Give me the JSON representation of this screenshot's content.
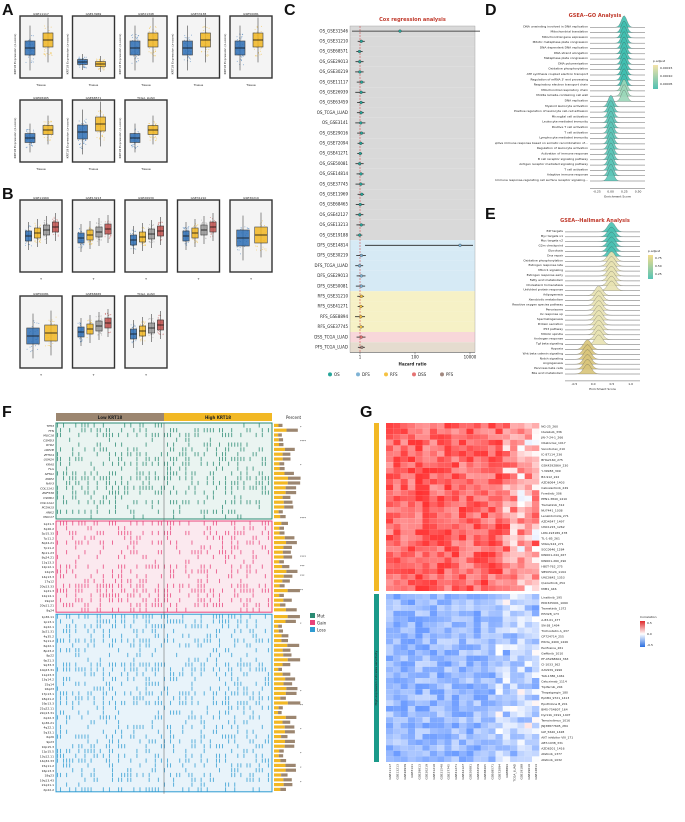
{
  "panels": {
    "A": "A",
    "B": "B",
    "C": "C",
    "D": "D",
    "E": "E",
    "F": "F",
    "G": "G"
  },
  "panelA": {
    "plots": [
      {
        "title": "GSE11117",
        "kind": "big"
      },
      {
        "title": "GSE13969",
        "kind": "flat"
      },
      {
        "title": "GSE21348",
        "kind": "big"
      },
      {
        "title": "GSE33138",
        "kind": "big"
      },
      {
        "title": "GSE50081",
        "kind": "big"
      },
      {
        "title": "GSE68465",
        "kind": "mid"
      },
      {
        "title": "GSE68571",
        "kind": "big"
      },
      {
        "title": "TCGA_LUAD",
        "kind": "mid"
      }
    ],
    "xlabel": "Tissue",
    "ylabel": "KRT18 Expression (z-score)",
    "colors": [
      "#2e6fb5",
      "#f2b824"
    ]
  },
  "panelB": {
    "plots": [
      {
        "title": "GSE11969",
        "n": 4
      },
      {
        "title": "GSE13213",
        "n": 4
      },
      {
        "title": "GSE26939",
        "n": 4
      },
      {
        "title": "GSE31210",
        "n": 4
      },
      {
        "title": "GSE30219",
        "n": 2
      },
      {
        "title": "GSE50081",
        "n": 2
      },
      {
        "title": "GSE68465",
        "n": 4
      },
      {
        "title": "TCGA_LUAD",
        "n": 4
      }
    ],
    "xlabel": "T",
    "colors": [
      "#2e6fb5",
      "#f2b824",
      "#999999",
      "#c0504d"
    ]
  },
  "panelC": {
    "title": "Cox regression analysis",
    "xlabel": "Hazard ratio",
    "xticks": [
      "1",
      "100",
      "10000"
    ],
    "rows": [
      {
        "label": "OS_GSE31546",
        "group": "OS"
      },
      {
        "label": "OS_GSE31210",
        "group": "OS"
      },
      {
        "label": "OS_GSE68571",
        "group": "OS"
      },
      {
        "label": "OS_GSE29013",
        "group": "OS"
      },
      {
        "label": "OS_GSE30219",
        "group": "OS"
      },
      {
        "label": "OS_GSE11117",
        "group": "OS"
      },
      {
        "label": "OS_GSE26939",
        "group": "OS"
      },
      {
        "label": "OS_GSE63459",
        "group": "OS"
      },
      {
        "label": "OS_TCGA_LUAD",
        "group": "OS"
      },
      {
        "label": "OS_GSE3141",
        "group": "OS"
      },
      {
        "label": "OS_GSE29016",
        "group": "OS"
      },
      {
        "label": "OS_GSE72094",
        "group": "OS"
      },
      {
        "label": "OS_GSE41271",
        "group": "OS"
      },
      {
        "label": "OS_GSE50081",
        "group": "OS"
      },
      {
        "label": "OS_GSE14814",
        "group": "OS"
      },
      {
        "label": "OS_GSE37745",
        "group": "OS"
      },
      {
        "label": "OS_GSE11969",
        "group": "OS"
      },
      {
        "label": "OS_GSE68465",
        "group": "OS"
      },
      {
        "label": "OS_GSE42127",
        "group": "OS"
      },
      {
        "label": "OS_GSE13213",
        "group": "OS"
      },
      {
        "label": "OS_GSE19188",
        "group": "OS"
      },
      {
        "label": "DFS_GSE14814",
        "group": "DFS"
      },
      {
        "label": "DFS_GSE30219",
        "group": "DFS"
      },
      {
        "label": "DFS_TCGA_LUAD",
        "group": "DFS"
      },
      {
        "label": "DFS_GSE29013",
        "group": "DFS"
      },
      {
        "label": "DFS_GSE50081",
        "group": "DFS"
      },
      {
        "label": "RFS_GSE31210",
        "group": "RFS"
      },
      {
        "label": "RFS_GSE41271",
        "group": "RFS"
      },
      {
        "label": "RFS_GSE8894",
        "group": "RFS"
      },
      {
        "label": "RFS_GSE37745",
        "group": "RFS"
      },
      {
        "label": "DSS_TCGA_LUAD",
        "group": "DSS"
      },
      {
        "label": "PFS_TCGA_LUAD",
        "group": "PFS"
      }
    ],
    "legend": [
      "OS",
      "DFS",
      "RFS",
      "DSS",
      "PFS"
    ],
    "groupColors": {
      "OS": "#26a69a",
      "DFS": "#7fb3d5",
      "RFS": "#f5c242",
      "DSS": "#e57373",
      "PFS": "#a1887f"
    },
    "bandColors": {
      "OS": "#d9d9d9",
      "DFS": "#d6eaf5",
      "RFS": "#f6f1c6",
      "DSS": "#f8d7da",
      "PFS": "#e5dccf"
    }
  },
  "panelD": {
    "title": "GSEA--GO Analysis",
    "xlabel": "Enrichment Score",
    "legendTitle": "p.adjust",
    "legendTicks": [
      "0.00015",
      "0.00010",
      "0.00005"
    ],
    "terms": [
      "DNA unwinding involved in DNA replication",
      "Mitochondrial translation",
      "Mitochondrial gene expression",
      "Mitotic metaphase plate congression",
      "DNA dependent DNA replication",
      "DNA strand elongation",
      "Metaphase plate congression",
      "DNA polymerization",
      "Oxidative phosphorylation",
      "ATP synthesis coupled electron transport",
      "Regulation of mRNA 3' end processing",
      "Respiratory electron transport chain",
      "Mitochondrial respiratory chain",
      "Middle lamella-containing cell wall",
      "DNA replication",
      "Myeloid leukocyte activation",
      "Positive regulation of leukocyte cell-cell adhesion",
      "Microglial cell activation",
      "Leukocyte mediated immunity",
      "Positive T cell activation",
      "T cell activation",
      "Lymphocyte mediated immunity",
      "Adaptive immune response based on somatic recombination of immune receptors built from immunoglobulin superfamily domains",
      "Regulation of leukocyte activation",
      "Activation of immune response",
      "B cell receptor signaling pathway",
      "Antigen receptor mediated signaling pathway",
      "T cell activation",
      "Adaptive immune response",
      "Immune response-regulating cell surface receptor signaling pathway"
    ],
    "xticks": [
      "-0.25",
      "0.00",
      "0.25",
      "0.50"
    ]
  },
  "panelE": {
    "title": "GSEA--Hallmark Analysis",
    "xlabel": "Enrichment Score",
    "legendTitle": "p.adjust",
    "legendTicks": [
      "0.75",
      "0.50",
      "0.25"
    ],
    "terms": [
      "E2f targets",
      "Myc targets v1",
      "Myc targets v2",
      "G2m checkpoint",
      "Glycolysis",
      "Dna repair",
      "Oxidative phosphorylation",
      "Estrogen response late",
      "Mtorc1 signaling",
      "Estrogen response early",
      "Fatty acid metabolism",
      "Cholesterol homeostasis",
      "Unfolded protein response",
      "Adipogenesis",
      "Xenobiotic metabolism",
      "Reactive oxygen species pathway",
      "Peroxisome",
      "Uv response up",
      "Spermatogenesis",
      "Protein secretion",
      "P53 pathway",
      "Mitotic spindle",
      "Androgen response",
      "Tgf beta signaling",
      "Hypoxia",
      "Wnt beta catenin signaling",
      "Notch signaling",
      "Angiogenesis",
      "Pancreas beta cells",
      "Bile acid metabolism"
    ],
    "xticks": [
      "-0.5",
      "0.0",
      "0.5",
      "1.0"
    ]
  },
  "panelF": {
    "header": [
      "Low KRT18",
      "High KRT18"
    ],
    "percentLabel": "Percent",
    "legend": [
      {
        "name": "Mut",
        "color": "#2a8a72"
      },
      {
        "name": "Gain",
        "color": "#e8437a"
      },
      {
        "name": "Loss",
        "color": "#2f9bd1"
      }
    ],
    "mutGenes": [
      "TP53",
      "TTN",
      "MUC16",
      "CSMD3",
      "RYR2",
      "LRP1B",
      "ZFHX4",
      "USH2A",
      "KRAS",
      "FLG",
      "SPTA1",
      "XIRP2",
      "NAV3",
      "COL11A1",
      "ZNF536",
      "CSMD1",
      "COL11A1",
      "PCDH15",
      "ANK2",
      "MUC17"
    ],
    "gainGenes": [
      "1q21.3",
      "3q26.2",
      "5p15.33",
      "7p11.2",
      "8q24.21",
      "7p11.2",
      "8p11.23",
      "8q24.21",
      "11q13.3",
      "12p12.1",
      "12q15",
      "14q13.3",
      "17q12",
      "20q13.33",
      "1q21.3",
      "12q14.1",
      "19q12",
      "20q11.21",
      "8q24"
    ],
    "lossGenes": [
      "1p36.11",
      "1p13.1",
      "2q22.1",
      "3p21.31",
      "4q35.2",
      "5q11.2",
      "6q22.1",
      "8p23.2",
      "8p22",
      "9p21.3",
      "9q33.3",
      "10q23.31",
      "11q23.3",
      "13q14.2",
      "15q14",
      "16q23",
      "17p13.1",
      "18q21.2",
      "19p13.3",
      "21q22.11",
      "22q13.31",
      "Xq22.3",
      "1p36.21",
      "4q22.1",
      "5q33.1",
      "6q26",
      "9p23",
      "10p15.3",
      "11p15.5",
      "13q12.11",
      "14q32.33",
      "15q11.2",
      "16p13.3",
      "18q23",
      "19q13.43",
      "21q21.1",
      "Xp22.2"
    ],
    "stars": [
      "*",
      "****",
      "*",
      "****",
      "****",
      "***",
      "***",
      "**",
      "*",
      "*",
      "**",
      "*",
      "*",
      "*",
      "*"
    ]
  },
  "panelG": {
    "columns": [
      "GSE11117",
      "GSE13213",
      "GSE26939",
      "GSE3141",
      "GSE29013",
      "GSE30219",
      "GSE31210",
      "GSE31546",
      "GSE37745",
      "GSE41271",
      "GSE42127",
      "GSE50081",
      "GSE63459",
      "GSE68465",
      "GSE68571",
      "GSE72094",
      "GSE8894",
      "TCGA_LUAD",
      "GSE19188",
      "GSE29016",
      "GSE14814"
    ],
    "drugs": [
      "NG-25_260",
      "Idelalisib_336",
      "JW-7-24-1_266",
      "Obatoclax_1017",
      "Venotoclax_210",
      "IC-87114_236",
      "BHG2160_275",
      "GSK429286A_230",
      "Y-39983_309",
      "BX-912_222",
      "AZD6094_1403",
      "Cabozantinib_249",
      "Foretinib_306",
      "PEN1-3840_1410",
      "Trametinib_312",
      "NU7441_1038",
      "Lenalidomide_271",
      "AZD4547_1497",
      "UNC1215_1262",
      "LDN-193189_478",
      "TL-1-85_261",
      "VNLG/124_271",
      "SGC0946_1284",
      "KIN001-244_267",
      "KIN001-260_290",
      "I-BET-762_275",
      "SB505124_1194",
      "UNC0642_1353",
      "Quizartinib_254",
      "MIM1_446",
      "Linsitinib_195",
      "PD0325901_1060",
      "Trametinib_1372",
      "PI5328_173",
      "A-83-01_477",
      "SN-38_1494",
      "Trichostatin A_437",
      "CP724714_255",
      "PIK3a_4409_1446",
      "Perifosine_261",
      "Gefitinib_1010",
      "PF-05268604_363",
      "CI-1033_362",
      "XAV939_1996",
      "TAK-1386_1461",
      "Cetuximab_1114",
      "Tipifarnib_204",
      "Thapsigargin_180",
      "EphB4_9721_1413",
      "Epothilone B_201",
      "BMS-754807_164",
      "Dyrk1b_0191_1407",
      "Temsirolimus_1016",
      "JNJ38877605_284",
      "IAP_5620_1428",
      "AKT inhibitor VIII_171",
      "ABT-1038_331",
      "AZD6201_1416",
      "Afatinib_1377",
      "Afatinib_1032"
    ],
    "sideLabel": "High expression indicates sensitivity",
    "legendTitle": "Correlation",
    "legendTicks": [
      "0.5",
      "0.0",
      "-0.5"
    ]
  }
}
